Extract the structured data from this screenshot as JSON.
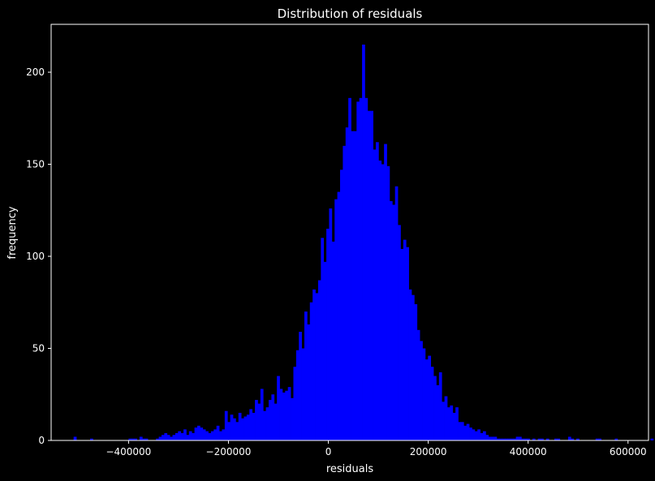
{
  "chart_data": {
    "type": "bar",
    "title": "Distribution of residuals",
    "xlabel": "residuals",
    "ylabel": "frequency",
    "xlim": [
      -555000,
      641000
    ],
    "ylim": [
      0,
      226
    ],
    "xticks": [
      -400000,
      -200000,
      0,
      200000,
      400000,
      600000
    ],
    "xtick_labels": [
      "−400000",
      "−200000",
      "0",
      "200000",
      "400000",
      "600000"
    ],
    "yticks": [
      0,
      50,
      100,
      150,
      200
    ],
    "ytick_labels": [
      "0",
      "50",
      "100",
      "150",
      "200"
    ],
    "bin_start": -510000,
    "bin_width": 5500,
    "bar_color": "#0000ff",
    "background_color": "#000000",
    "foreground_color": "#ffffff",
    "grid": false,
    "values": [
      2,
      0,
      0,
      0,
      0,
      0,
      1,
      0,
      0,
      0,
      0,
      0,
      0,
      0,
      0,
      0,
      0,
      0,
      0,
      0,
      1,
      1,
      1,
      0,
      2,
      1,
      1,
      0,
      0,
      0,
      1,
      2,
      3,
      4,
      3,
      2,
      3,
      4,
      5,
      4,
      6,
      3,
      5,
      4,
      7,
      8,
      7,
      6,
      5,
      4,
      5,
      6,
      8,
      5,
      6,
      16,
      10,
      14,
      12,
      10,
      15,
      12,
      13,
      14,
      17,
      15,
      22,
      20,
      28,
      16,
      18,
      22,
      25,
      20,
      35,
      28,
      26,
      27,
      29,
      23,
      40,
      49,
      59,
      50,
      70,
      63,
      75,
      82,
      80,
      87,
      110,
      97,
      115,
      126,
      108,
      131,
      135,
      147,
      160,
      170,
      186,
      168,
      168,
      184,
      186,
      215,
      186,
      179,
      179,
      158,
      162,
      152,
      150,
      161,
      149,
      130,
      128,
      138,
      117,
      104,
      109,
      105,
      82,
      79,
      74,
      60,
      54,
      50,
      44,
      46,
      40,
      35,
      30,
      37,
      21,
      24,
      18,
      19,
      15,
      18,
      10,
      10,
      8,
      9,
      7,
      6,
      5,
      6,
      4,
      5,
      3,
      2,
      2,
      2,
      1,
      1,
      1,
      1,
      1,
      1,
      1,
      2,
      2,
      1,
      1,
      1,
      0,
      1,
      0,
      1,
      1,
      0,
      1,
      0,
      0,
      1,
      1,
      0,
      0,
      0,
      2,
      1,
      0,
      1,
      0,
      0,
      0,
      0,
      0,
      0,
      1,
      1,
      0,
      0,
      0,
      0,
      0,
      1,
      0,
      0,
      0,
      0,
      0,
      0,
      0,
      0,
      0,
      0,
      0,
      0,
      1,
      0,
      0,
      0,
      0,
      0,
      0,
      0,
      1,
      1,
      0,
      0,
      0,
      0,
      1,
      0,
      0,
      0,
      0,
      0,
      0,
      0,
      0,
      0,
      1,
      0,
      0,
      0,
      0,
      1
    ]
  }
}
